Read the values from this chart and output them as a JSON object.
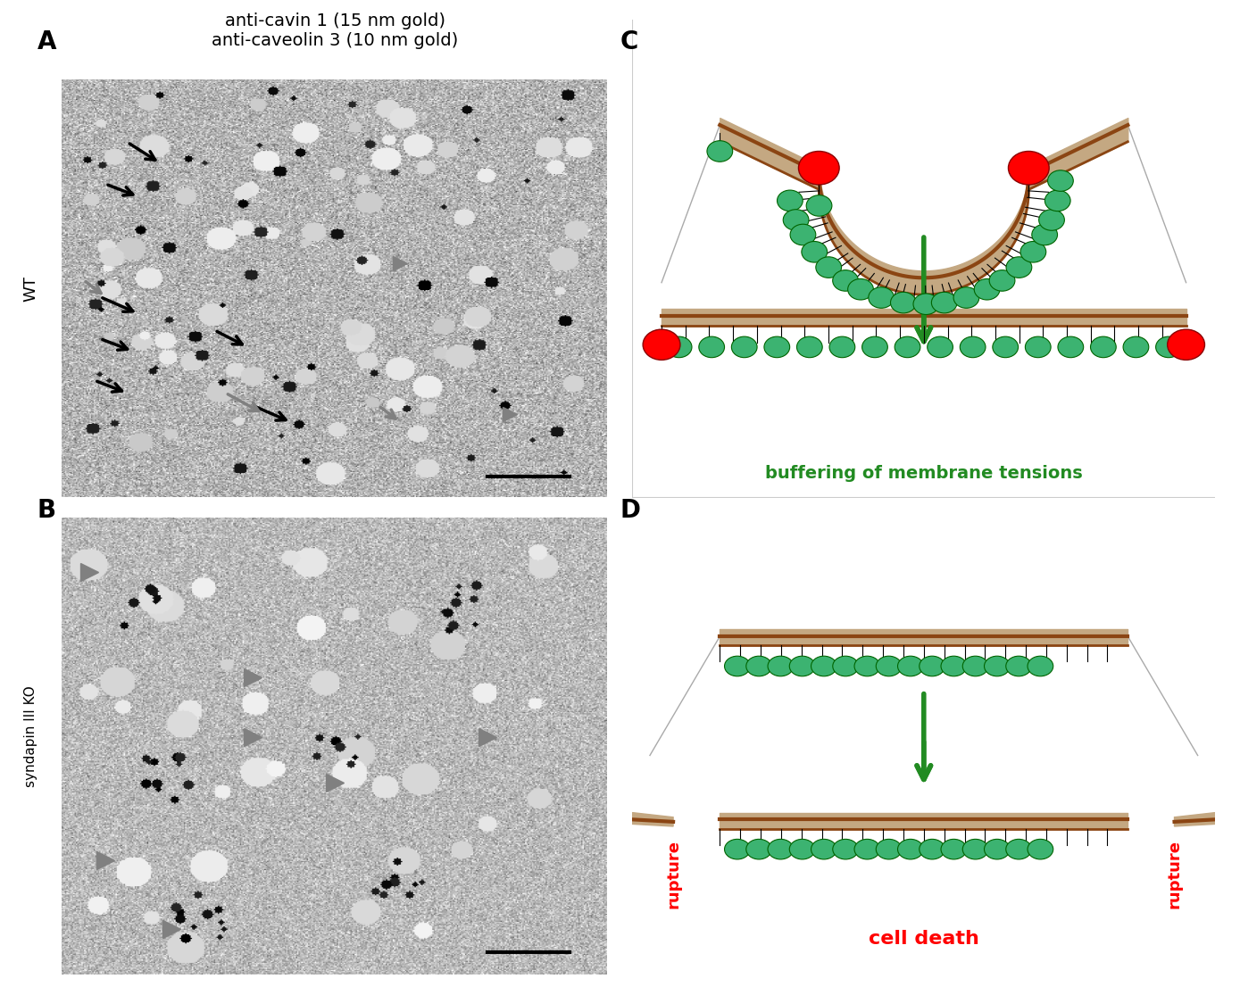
{
  "title_top": "anti-cavin 1 (15 nm gold)\nanti-caveolin 3 (10 nm gold)",
  "label_A": "A",
  "label_B": "B",
  "label_C": "C",
  "label_D": "D",
  "label_WT": "WT",
  "label_KO": "syndapin III KO",
  "text_buffering": "buffering of membrane tensions",
  "text_cell_death": "cell death",
  "text_rupture": "rupture",
  "bg_color": "#ffffff",
  "membrane_dark": "#8B4513",
  "membrane_light": "#C4A882",
  "green_circle": "#3CB371",
  "red_circle": "#FF0000",
  "red_arrow": "#FF0000",
  "green_arrow": "#228B22",
  "black_color": "#000000",
  "gray_color": "#808080"
}
